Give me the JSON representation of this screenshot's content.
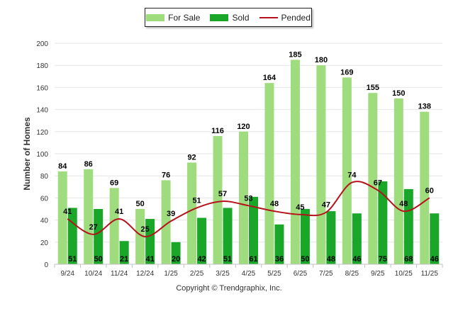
{
  "chart_data": {
    "type": "bar",
    "title": "",
    "xlabel": "",
    "ylabel": "Number of Homes",
    "ylim": [
      0,
      200
    ],
    "yticks": [
      0,
      20,
      40,
      60,
      80,
      100,
      120,
      140,
      160,
      180,
      200
    ],
    "categories": [
      "9/24",
      "10/24",
      "11/24",
      "12/24",
      "1/25",
      "2/25",
      "3/25",
      "4/25",
      "5/25",
      "6/25",
      "7/25",
      "8/25",
      "9/25",
      "10/25",
      "11/25"
    ],
    "series": [
      {
        "name": "For Sale",
        "kind": "bar",
        "color": "#9fdc7e",
        "values": [
          84,
          86,
          69,
          50,
          76,
          92,
          116,
          120,
          164,
          185,
          180,
          169,
          155,
          150,
          138
        ]
      },
      {
        "name": "Sold",
        "kind": "bar",
        "color": "#19a629",
        "values": [
          51,
          50,
          21,
          41,
          20,
          42,
          51,
          61,
          36,
          50,
          48,
          46,
          75,
          68,
          46
        ]
      },
      {
        "name": "Pended",
        "kind": "line",
        "color": "#b5121b",
        "values": [
          41,
          27,
          41,
          25,
          39,
          51,
          57,
          53,
          48,
          45,
          47,
          74,
          67,
          48,
          60
        ]
      }
    ],
    "legend": "top-center",
    "grid": true
  },
  "footer": {
    "copyright": "Copyright © Trendgraphix, Inc."
  }
}
